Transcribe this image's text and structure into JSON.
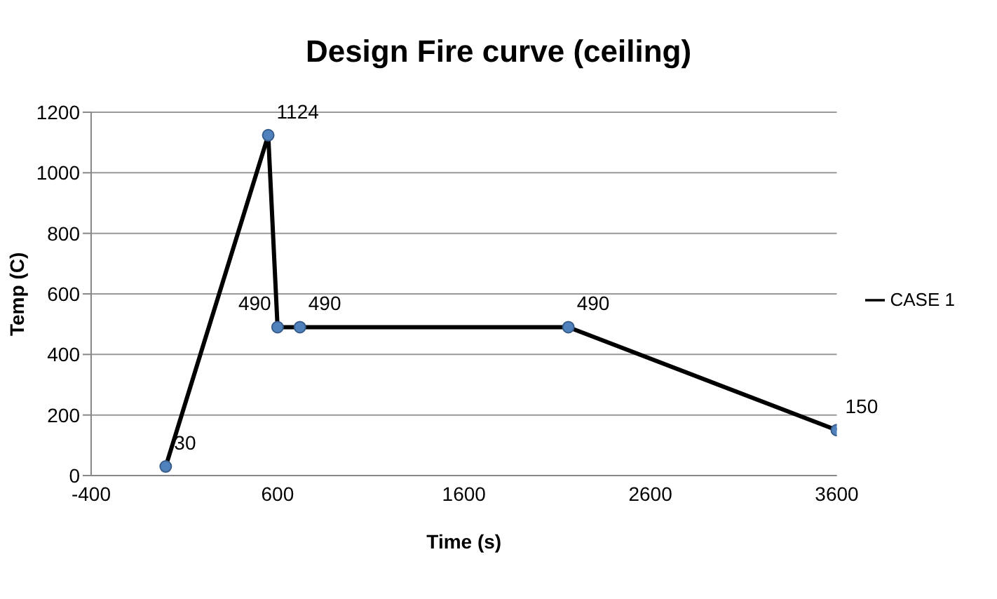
{
  "chart_data": {
    "type": "line",
    "title": "Design Fire curve (ceiling)",
    "xlabel": "Time (s)",
    "ylabel": "Temp (C)",
    "x": [
      0,
      550,
      600,
      720,
      2160,
      3600
    ],
    "series": [
      {
        "name": "CASE 1",
        "color": "#000000",
        "values": [
          30,
          1124,
          490,
          490,
          490,
          150
        ]
      }
    ],
    "xlim": [
      -400,
      3600
    ],
    "xticks": [
      -400,
      600,
      1600,
      2600,
      3600
    ],
    "ylim": [
      0,
      1200
    ],
    "yticks": [
      0,
      200,
      400,
      600,
      800,
      1000,
      1200
    ],
    "grid": "y",
    "legend": "right",
    "marker": "circle",
    "line_style": "solid",
    "data_labels": true
  }
}
